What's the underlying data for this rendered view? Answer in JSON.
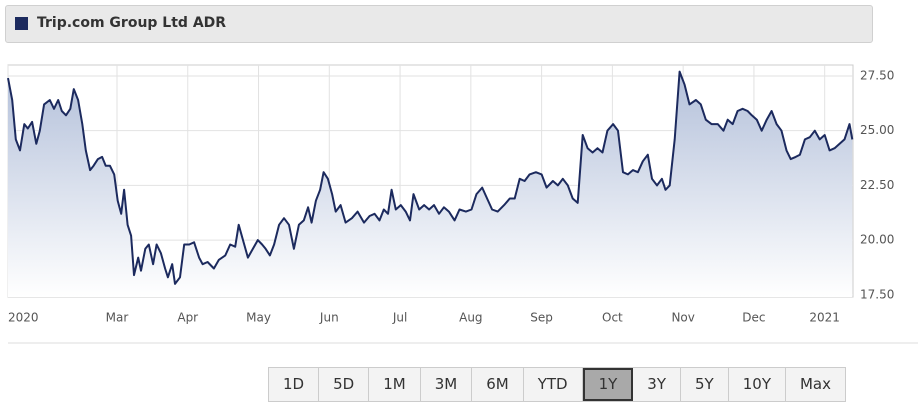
{
  "chart_data": {
    "type": "area",
    "title": "Trip.com Group Ltd ADR",
    "color": "#1c2a5e",
    "x": [
      0.46,
      0.52,
      0.57,
      0.63,
      0.69,
      0.74,
      0.8,
      0.86,
      0.91,
      0.97,
      1.05,
      1.11,
      1.17,
      1.22,
      1.28,
      1.34,
      1.39,
      1.45,
      1.51,
      1.56,
      1.62,
      1.67,
      1.73,
      1.79,
      1.84,
      1.9,
      1.96,
      2.01,
      2.06,
      2.1,
      2.15,
      2.2,
      2.24,
      2.3,
      2.34,
      2.4,
      2.45,
      2.51,
      2.56,
      2.62,
      2.68,
      2.72,
      2.78,
      2.82,
      2.89,
      2.95,
      3.02,
      3.09,
      3.16,
      3.21,
      3.28,
      3.37,
      3.44,
      3.53,
      3.6,
      3.67,
      3.72,
      3.78,
      3.85,
      3.92,
      3.99,
      4.05,
      4.1,
      4.16,
      4.22,
      4.29,
      4.36,
      4.43,
      4.5,
      4.57,
      4.64,
      4.7,
      4.75,
      4.81,
      4.87,
      4.92,
      4.98,
      5.04,
      5.09,
      5.16,
      5.23,
      5.32,
      5.4,
      5.49,
      5.57,
      5.64,
      5.71,
      5.77,
      5.83,
      5.88,
      5.94,
      6.01,
      6.08,
      6.14,
      6.19,
      6.27,
      6.34,
      6.41,
      6.48,
      6.55,
      6.62,
      6.69,
      6.77,
      6.84,
      6.93,
      7.01,
      7.08,
      7.16,
      7.23,
      7.3,
      7.38,
      7.47,
      7.55,
      7.62,
      7.69,
      7.76,
      7.83,
      7.92,
      8.0,
      8.07,
      8.16,
      8.23,
      8.3,
      8.37,
      8.44,
      8.51,
      8.58,
      8.65,
      8.72,
      8.79,
      8.86,
      8.93,
      9.01,
      9.08,
      9.15,
      9.22,
      9.29,
      9.36,
      9.43,
      9.5,
      9.56,
      9.63,
      9.7,
      9.75,
      9.81,
      9.88,
      9.95,
      10.02,
      10.09,
      10.18,
      10.25,
      10.32,
      10.4,
      10.49,
      10.57,
      10.63,
      10.7,
      10.77,
      10.84,
      10.91,
      10.97,
      11.04,
      11.11,
      11.18,
      11.25,
      11.32,
      11.39,
      11.46,
      11.52,
      11.59,
      11.65,
      11.72,
      11.79,
      11.86,
      11.93,
      12.0,
      12.07,
      12.14,
      12.21,
      12.28,
      12.35,
      12.39
    ],
    "values": [
      27.4,
      26.4,
      24.6,
      24.1,
      25.3,
      25.1,
      25.4,
      24.4,
      25.0,
      26.2,
      26.4,
      26.0,
      26.4,
      25.9,
      25.7,
      26.0,
      26.9,
      26.4,
      25.3,
      24.1,
      23.2,
      23.4,
      23.7,
      23.8,
      23.4,
      23.4,
      23.0,
      21.8,
      21.2,
      22.3,
      20.7,
      20.2,
      18.4,
      19.2,
      18.6,
      19.6,
      19.8,
      18.9,
      19.8,
      19.4,
      18.7,
      18.3,
      18.9,
      18.0,
      18.3,
      19.8,
      19.8,
      19.9,
      19.2,
      18.9,
      19.0,
      18.7,
      19.1,
      19.3,
      19.8,
      19.7,
      20.7,
      20.0,
      19.2,
      19.6,
      20.0,
      19.8,
      19.6,
      19.3,
      19.8,
      20.7,
      21.0,
      20.7,
      19.6,
      20.7,
      20.9,
      21.5,
      20.8,
      21.8,
      22.3,
      23.1,
      22.8,
      22.1,
      21.3,
      21.6,
      20.8,
      21.0,
      21.3,
      20.8,
      21.1,
      21.2,
      20.9,
      21.4,
      21.2,
      22.3,
      21.4,
      21.6,
      21.3,
      20.9,
      22.1,
      21.4,
      21.6,
      21.4,
      21.6,
      21.2,
      21.5,
      21.3,
      20.9,
      21.4,
      21.3,
      21.4,
      22.1,
      22.4,
      21.9,
      21.4,
      21.3,
      21.6,
      21.9,
      21.9,
      22.8,
      22.7,
      23.0,
      23.1,
      23.0,
      22.4,
      22.7,
      22.5,
      22.8,
      22.5,
      21.9,
      21.7,
      24.8,
      24.2,
      24.0,
      24.2,
      24.0,
      25.0,
      25.3,
      25.0,
      23.1,
      23.0,
      23.2,
      23.1,
      23.6,
      23.9,
      22.8,
      22.5,
      22.8,
      22.3,
      22.5,
      24.6,
      27.7,
      27.1,
      26.2,
      26.4,
      26.2,
      25.5,
      25.3,
      25.3,
      25.0,
      25.5,
      25.3,
      25.9,
      26.0,
      25.9,
      25.7,
      25.5,
      25.0,
      25.5,
      25.9,
      25.3,
      25.0,
      24.1,
      23.7,
      23.8,
      23.9,
      24.6,
      24.7,
      25.0,
      24.6,
      24.8,
      24.1,
      24.2,
      24.4,
      24.6,
      25.3,
      24.6
    ],
    "xlim": [
      0.46,
      12.4
    ],
    "xticks": [
      {
        "value": 0.46,
        "label": "2020"
      },
      {
        "value": 2,
        "label": "Mar"
      },
      {
        "value": 3,
        "label": "Apr"
      },
      {
        "value": 4,
        "label": "May"
      },
      {
        "value": 5,
        "label": "Jun"
      },
      {
        "value": 6,
        "label": "Jul"
      },
      {
        "value": 7,
        "label": "Aug"
      },
      {
        "value": 8,
        "label": "Sep"
      },
      {
        "value": 9,
        "label": "Oct"
      },
      {
        "value": 10,
        "label": "Nov"
      },
      {
        "value": 11,
        "label": "Dec"
      },
      {
        "value": 12,
        "label": "2021"
      }
    ],
    "ylim": [
      17.4,
      28.0
    ],
    "yticks": [
      {
        "value": 17.5,
        "label": "17.50"
      },
      {
        "value": 20,
        "label": "20.00"
      },
      {
        "value": 22.5,
        "label": "22.50"
      },
      {
        "value": 25,
        "label": "25.00"
      },
      {
        "value": 27.5,
        "label": "27.50"
      }
    ],
    "grid": true,
    "range_buttons": [
      "1D",
      "5D",
      "1M",
      "3M",
      "6M",
      "YTD",
      "1Y",
      "3Y",
      "5Y",
      "10Y",
      "Max"
    ],
    "active_range_button": "1Y"
  }
}
